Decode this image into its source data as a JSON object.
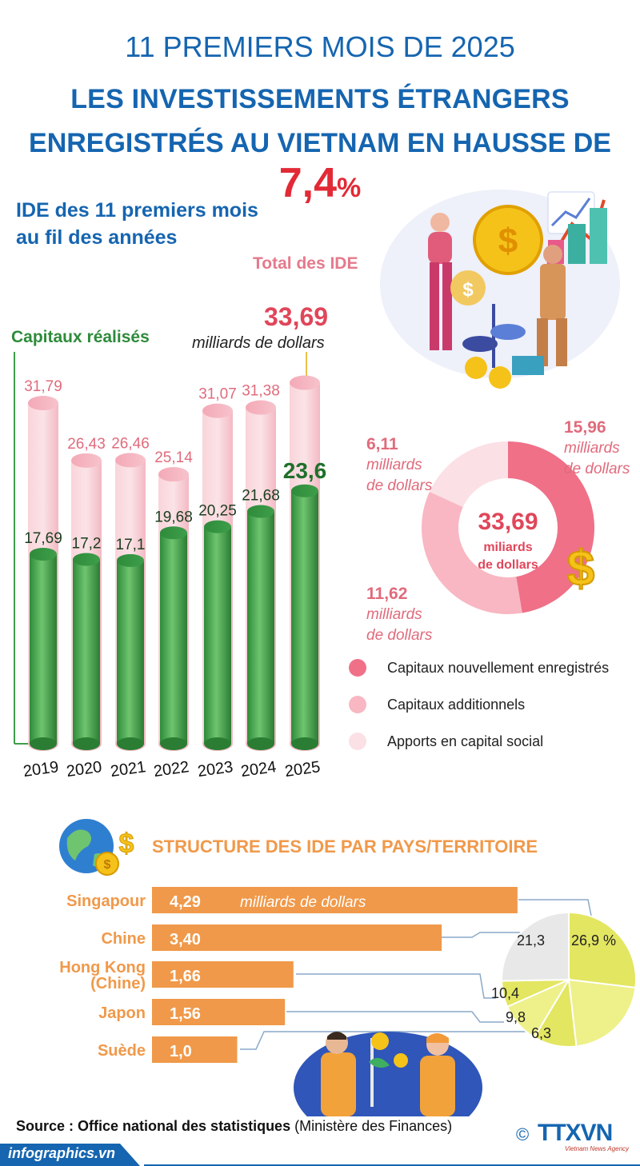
{
  "header": {
    "line1": "11 PREMIERS MOIS DE 2025",
    "line2": "LES INVESTISSEMENTS ÉTRANGERS",
    "line3_text": "ENREGISTRÉS AU VIETNAM EN HAUSSE DE ",
    "line3_value": "7,4",
    "line3_unit": "%"
  },
  "section1": {
    "title_line1": "IDE des 11 premiers mois",
    "title_line2": "au fil des années",
    "total_label": "Total des IDE",
    "total_value": "33,69",
    "total_unit": "milliards de dollars",
    "realized_label": "Capitaux réalisés"
  },
  "chart_data": [
    {
      "type": "bar",
      "categories": [
        "2019",
        "2020",
        "2021",
        "2022",
        "2023",
        "2024",
        "2025"
      ],
      "series": [
        {
          "name": "Total des IDE",
          "values": [
            31.79,
            26.43,
            26.46,
            25.14,
            31.07,
            31.38,
            33.69
          ],
          "labels": [
            "31,79",
            "26,43",
            "26,46",
            "25,14",
            "31,07",
            "31,38",
            ""
          ]
        },
        {
          "name": "Capitaux réalisés",
          "values": [
            17.69,
            17.2,
            17.1,
            19.68,
            20.25,
            21.68,
            23.6
          ],
          "labels": [
            "17,69",
            "17,2",
            "17,1",
            "19,68",
            "20,25",
            "21,68",
            "23,6"
          ]
        }
      ],
      "colors": {
        "total": "#f7c7d0",
        "realized": "#3e9e4a"
      }
    },
    {
      "type": "pie",
      "center_value": "33,69",
      "center_unit_line1": "miliards",
      "center_unit_line2": "de dollars",
      "slices": [
        {
          "name": "Capitaux nouvellement enregistrés",
          "value": 15.96,
          "label": "15,96",
          "unit_line1": "milliards",
          "unit_line2": "de dollars",
          "color": "#f07088"
        },
        {
          "name": "Capitaux additionnels",
          "value": 11.62,
          "label": "11,62",
          "unit_line1": "milliards",
          "unit_line2": "de dollars",
          "color": "#f8b7c2"
        },
        {
          "name": "Apports en capital social",
          "value": 6.11,
          "label": "6,11",
          "unit_line1": "milliards",
          "unit_line2": "de dollars",
          "color": "#fbe0e5"
        }
      ]
    },
    {
      "type": "bar",
      "title": "STRUCTURE DES IDE PAR PAYS/TERRITOIRE",
      "orientation": "horizontal",
      "categories": [
        "Singapour",
        "Chine",
        "Hong Kong (Chine)",
        "Japon",
        "Suède"
      ],
      "category_lines": [
        [
          "Singapour"
        ],
        [
          "Chine"
        ],
        [
          "Hong Kong",
          "(Chine)"
        ],
        [
          "Japon"
        ],
        [
          "Suède"
        ]
      ],
      "values": [
        4.29,
        3.4,
        1.66,
        1.56,
        1.0
      ],
      "labels": [
        "4,29",
        "3,40",
        "1,66",
        "1,56",
        "1,0"
      ],
      "first_unit": "milliards de dollars",
      "color": "#f0994a"
    },
    {
      "type": "pie",
      "slices": [
        {
          "value": 26.9,
          "label": "26,9 %",
          "color": "#e3e660"
        },
        {
          "value": 21.3,
          "label": "21,3",
          "color": "#eef08a"
        },
        {
          "value": 10.4,
          "label": "10,4",
          "color": "#e3e660"
        },
        {
          "value": 9.8,
          "label": "9,8",
          "color": "#eef08a"
        },
        {
          "value": 6.3,
          "label": "6,3",
          "color": "#e3e660"
        },
        {
          "value": 25.3,
          "label": "",
          "color": "#e8e8e8"
        }
      ]
    }
  ],
  "legend": [
    {
      "label": "Capitaux nouvellement enregistrés",
      "color": "#f07088"
    },
    {
      "label": "Capitaux additionnels",
      "color": "#f8b7c2"
    },
    {
      "label": "Apports en capital social",
      "color": "#fbe0e5"
    }
  ],
  "section2": {
    "title": "STRUCTURE DES IDE PAR PAYS/TERRITOIRE"
  },
  "footer": {
    "source_bold": "Source : Office national des statistiques",
    "source_rest": " (Ministère des Finances)",
    "site": "infographics.vn",
    "copyright": "©",
    "agency": "TTXVN",
    "agency_sub": "Vietnam News Agency"
  },
  "colors": {
    "blue": "#1565b0",
    "red": "#e22a36",
    "green": "#2e8b3a",
    "orange": "#f0994a",
    "pink": "#e06b7c"
  }
}
